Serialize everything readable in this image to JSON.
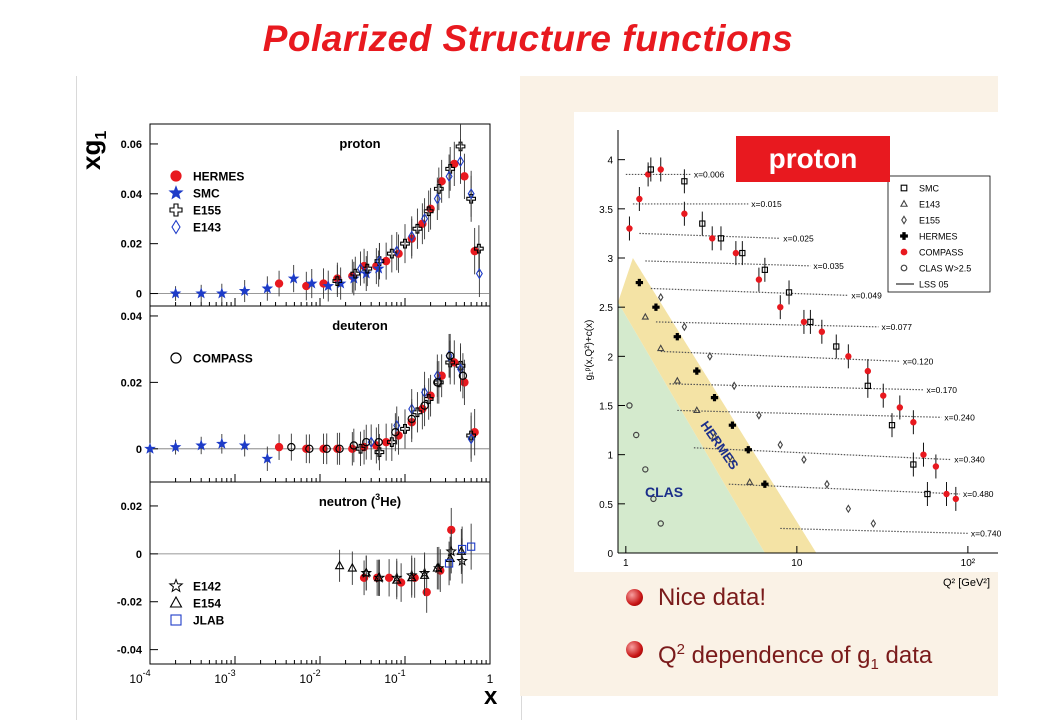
{
  "title": "Polarized Structure functions",
  "left_panel": {
    "ylabel": "xg",
    "ylabel_sub": "1",
    "xlabel": "x",
    "x_ticks": [
      {
        "base": "10",
        "exp": "-4"
      },
      {
        "base": "10",
        "exp": "-3"
      },
      {
        "base": "10",
        "exp": "-2"
      },
      {
        "base": "10",
        "exp": "-1"
      },
      {
        "base": "1",
        "exp": ""
      }
    ],
    "subplots": [
      {
        "label": "proton",
        "yticks": [
          "0.06",
          "0.04",
          "0.02",
          "0"
        ],
        "legend": [
          "HERMES",
          "SMC",
          "E155",
          "E143"
        ]
      },
      {
        "label": "deuteron",
        "yticks": [
          "0.04",
          "0.02",
          "0"
        ],
        "legend": [
          "COMPASS"
        ]
      },
      {
        "label": "neutron (",
        "label_sup": "3",
        "label_tail": "He)",
        "yticks": [
          "0.02",
          "0",
          "-0.02",
          "-0.04"
        ],
        "legend": [
          "E142",
          "E154",
          "JLAB"
        ]
      }
    ]
  },
  "right_panel": {
    "badge": "proton",
    "ylabel": "g₁ᵖ(x,Q²)+c(x)",
    "xlabel": "Q² [GeV²]",
    "yticks": [
      "4",
      "3.5",
      "3",
      "2.5",
      "2",
      "1.5",
      "1",
      "0.5",
      "0"
    ],
    "xticks": [
      "1",
      "10",
      "10²"
    ],
    "legend": [
      "SMC",
      "E143",
      "E155",
      "HERMES",
      "COMPASS",
      "CLAS W>2.5",
      "LSS 05"
    ],
    "region_labels": [
      "HERMES",
      "CLAS"
    ],
    "x_bins": [
      "x=0.006",
      "x=0.015",
      "x=0.025",
      "x=0.035",
      "x=0.049",
      "x=0.077",
      "x=0.120",
      "x=0.170",
      "x=0.240",
      "x=0.340",
      "x=0.480",
      "x=0.740"
    ]
  },
  "bullets": [
    {
      "text": "Nice data!"
    },
    {
      "pre": "Q",
      "sup": "2",
      "mid": " dependence of g",
      "sub": "1",
      "post": " data"
    }
  ],
  "chart_data": [
    {
      "type": "scatter",
      "title": "proton",
      "xlabel": "x",
      "ylabel": "xg1",
      "xscale": "log",
      "xlim": [
        0.0001,
        1
      ],
      "ylim": [
        -0.005,
        0.068
      ],
      "series": [
        {
          "name": "HERMES",
          "color": "#e8191f",
          "x": [
            0.0033,
            0.0069,
            0.011,
            0.016,
            0.024,
            0.033,
            0.046,
            0.06,
            0.084,
            0.12,
            0.16,
            0.2,
            0.27,
            0.38,
            0.5,
            0.66
          ],
          "y": [
            0.004,
            0.003,
            0.004,
            0.006,
            0.007,
            0.011,
            0.011,
            0.013,
            0.016,
            0.022,
            0.028,
            0.034,
            0.045,
            0.052,
            0.047,
            0.017
          ]
        },
        {
          "name": "SMC",
          "color": "#1e3cc8",
          "x": [
            0.0002,
            0.0004,
            0.0007,
            0.0013,
            0.0024,
            0.0049,
            0.008,
            0.0125,
            0.0175,
            0.025,
            0.035,
            0.049
          ],
          "y": [
            0.0,
            0.0,
            0.0,
            0.001,
            0.002,
            0.006,
            0.004,
            0.003,
            0.004,
            0.006,
            0.008,
            0.01
          ]
        },
        {
          "name": "E155",
          "color": "#000000",
          "x": [
            0.016,
            0.026,
            0.036,
            0.05,
            0.07,
            0.1,
            0.14,
            0.19,
            0.25,
            0.34,
            0.45,
            0.6,
            0.74
          ],
          "y": [
            0.005,
            0.008,
            0.01,
            0.013,
            0.016,
            0.02,
            0.026,
            0.033,
            0.042,
            0.05,
            0.059,
            0.038,
            0.018
          ]
        },
        {
          "name": "E143",
          "color": "#1e3cc8",
          "x": [
            0.03,
            0.05,
            0.08,
            0.12,
            0.17,
            0.24,
            0.33,
            0.45,
            0.6,
            0.75
          ],
          "y": [
            0.01,
            0.013,
            0.017,
            0.023,
            0.03,
            0.038,
            0.047,
            0.053,
            0.04,
            0.008
          ]
        }
      ]
    },
    {
      "type": "scatter",
      "title": "deuteron",
      "xlabel": "x",
      "ylabel": "xg1",
      "xscale": "log",
      "xlim": [
        0.0001,
        1
      ],
      "ylim": [
        -0.01,
        0.043
      ],
      "series": [
        {
          "name": "HERMES",
          "color": "#e8191f",
          "x": [
            0.0033,
            0.0069,
            0.011,
            0.016,
            0.024,
            0.033,
            0.046,
            0.06,
            0.084,
            0.12,
            0.16,
            0.2,
            0.27,
            0.38,
            0.5,
            0.66
          ],
          "y": [
            0.0005,
            0.0,
            0.0,
            0.0,
            0.0,
            0.0005,
            0.001,
            0.002,
            0.004,
            0.008,
            0.012,
            0.016,
            0.022,
            0.026,
            0.02,
            0.005
          ]
        },
        {
          "name": "SMC",
          "color": "#1e3cc8",
          "x": [
            0.0001,
            0.0002,
            0.0004,
            0.0007,
            0.0013,
            0.0024
          ],
          "y": [
            0.0,
            0.0005,
            0.001,
            0.0015,
            0.001,
            -0.003
          ]
        },
        {
          "name": "E155",
          "color": "#000000",
          "x": [
            0.03,
            0.05,
            0.07,
            0.1,
            0.14,
            0.19,
            0.25,
            0.34,
            0.45,
            0.6
          ],
          "y": [
            0.0,
            -0.001,
            0.002,
            0.006,
            0.011,
            0.015,
            0.02,
            0.026,
            0.025,
            0.004
          ]
        },
        {
          "name": "E143",
          "color": "#1e3cc8",
          "x": [
            0.04,
            0.08,
            0.12,
            0.17,
            0.24,
            0.33,
            0.45,
            0.6
          ],
          "y": [
            0.002,
            0.007,
            0.012,
            0.017,
            0.022,
            0.028,
            0.024,
            0.003
          ]
        },
        {
          "name": "COMPASS",
          "color": "#000000",
          "x": [
            0.0046,
            0.0075,
            0.012,
            0.017,
            0.025,
            0.035,
            0.049,
            0.077,
            0.12,
            0.17,
            0.24,
            0.34,
            0.48
          ],
          "y": [
            0.0005,
            0.0,
            0.0,
            0.0,
            0.001,
            0.002,
            0.002,
            0.005,
            0.009,
            0.013,
            0.02,
            0.028,
            0.022
          ]
        }
      ]
    },
    {
      "type": "scatter",
      "title": "neutron (3He)",
      "xlabel": "x",
      "ylabel": "xg1",
      "xscale": "log",
      "xlim": [
        0.0001,
        1
      ],
      "ylim": [
        -0.046,
        0.03
      ],
      "series": [
        {
          "name": "HERMES",
          "color": "#e8191f",
          "x": [
            0.033,
            0.047,
            0.065,
            0.09,
            0.13,
            0.18,
            0.26,
            0.35
          ],
          "y": [
            -0.01,
            -0.01,
            -0.01,
            -0.012,
            -0.01,
            -0.016,
            -0.007,
            0.01
          ]
        },
        {
          "name": "E142",
          "color": "#000000",
          "x": [
            0.035,
            0.05,
            0.08,
            0.12,
            0.17,
            0.25,
            0.35,
            0.47
          ],
          "y": [
            -0.008,
            -0.01,
            -0.01,
            -0.009,
            -0.008,
            -0.006,
            0.001,
            -0.003
          ]
        },
        {
          "name": "E154",
          "color": "#000000",
          "x": [
            0.017,
            0.024,
            0.035,
            0.049,
            0.08,
            0.12,
            0.17,
            0.24,
            0.34,
            0.46
          ],
          "y": [
            -0.005,
            -0.006,
            -0.008,
            -0.01,
            -0.011,
            -0.01,
            -0.009,
            -0.006,
            -0.002,
            0.001
          ]
        },
        {
          "name": "JLAB",
          "color": "#1e3cc8",
          "x": [
            0.33,
            0.47,
            0.6
          ],
          "y": [
            -0.004,
            0.002,
            0.003
          ]
        }
      ]
    },
    {
      "type": "line",
      "title": "proton",
      "xlabel": "Q² [GeV²]",
      "ylabel": "g₁ᵖ(x,Q²)+c(x)",
      "xscale": "log",
      "xlim": [
        0.9,
        150
      ],
      "ylim": [
        0,
        4.2
      ],
      "series": [
        {
          "name": "LSS 05",
          "color": "#000000",
          "bins": [
            {
              "label": "x=0.006",
              "x": [
                1.0,
                2.4
              ],
              "y": [
                3.85,
                3.85
              ]
            },
            {
              "label": "x=0.015",
              "x": [
                1.1,
                5.2
              ],
              "y": [
                3.55,
                3.55
              ]
            },
            {
              "label": "x=0.025",
              "x": [
                1.2,
                8
              ],
              "y": [
                3.25,
                3.2
              ]
            },
            {
              "label": "x=0.035",
              "x": [
                1.3,
                12
              ],
              "y": [
                2.97,
                2.92
              ]
            },
            {
              "label": "x=0.049",
              "x": [
                1.4,
                20
              ],
              "y": [
                2.69,
                2.62
              ]
            },
            {
              "label": "x=0.077",
              "x": [
                1.5,
                30
              ],
              "y": [
                2.35,
                2.3
              ]
            },
            {
              "label": "x=0.120",
              "x": [
                1.6,
                40
              ],
              "y": [
                2.05,
                1.95
              ]
            },
            {
              "label": "x=0.170",
              "x": [
                1.8,
                55
              ],
              "y": [
                1.72,
                1.66
              ]
            },
            {
              "label": "x=0.240",
              "x": [
                2.0,
                70
              ],
              "y": [
                1.45,
                1.38
              ]
            },
            {
              "label": "x=0.340",
              "x": [
                2.5,
                80
              ],
              "y": [
                1.07,
                0.95
              ]
            },
            {
              "label": "x=0.480",
              "x": [
                4,
                90
              ],
              "y": [
                0.7,
                0.6
              ]
            },
            {
              "label": "x=0.740",
              "x": [
                8,
                100
              ],
              "y": [
                0.25,
                0.2
              ]
            }
          ]
        },
        {
          "name": "COMPASS",
          "color": "#e8191f",
          "x": [
            1.05,
            1.2,
            1.35,
            1.6,
            2.2,
            3.2,
            4.4,
            6.0,
            8.0,
            11,
            14,
            20,
            26,
            32,
            40,
            48,
            55,
            65,
            75,
            85
          ],
          "y": [
            3.3,
            3.6,
            3.85,
            3.9,
            3.45,
            3.2,
            3.05,
            2.78,
            2.5,
            2.35,
            2.25,
            2.0,
            1.85,
            1.6,
            1.48,
            1.33,
            1.0,
            0.88,
            0.6,
            0.55
          ]
        },
        {
          "name": "HERMES",
          "color": "#000000",
          "x": [
            1.2,
            1.5,
            2.0,
            2.6,
            3.3,
            4.2,
            5.2,
            6.5
          ],
          "y": [
            2.75,
            2.5,
            2.2,
            1.85,
            1.58,
            1.3,
            1.05,
            0.7
          ]
        },
        {
          "name": "SMC",
          "color": "#000000",
          "x": [
            1.4,
            2.2,
            2.8,
            3.6,
            4.8,
            6.5,
            9,
            12,
            17,
            26,
            36,
            48,
            58
          ],
          "y": [
            3.9,
            3.78,
            3.35,
            3.2,
            3.05,
            2.88,
            2.65,
            2.35,
            2.1,
            1.7,
            1.3,
            0.9,
            0.6
          ]
        },
        {
          "name": "E143",
          "color": "#000000",
          "x": [
            1.3,
            1.6,
            2.0,
            2.6,
            3.3,
            4.2,
            5.3
          ],
          "y": [
            2.4,
            2.08,
            1.75,
            1.45,
            1.18,
            0.95,
            0.72
          ]
        },
        {
          "name": "E155",
          "color": "#000000",
          "x": [
            1.6,
            2.2,
            3.1,
            4.3,
            6,
            8,
            11,
            15,
            20,
            28
          ],
          "y": [
            2.6,
            2.3,
            2.0,
            1.7,
            1.4,
            1.1,
            0.95,
            0.7,
            0.45,
            0.3
          ]
        },
        {
          "name": "CLAS W>2.5",
          "color": "#000000",
          "x": [
            1.05,
            1.15,
            1.3,
            1.45,
            1.6
          ],
          "y": [
            1.5,
            1.2,
            0.85,
            0.55,
            0.3
          ]
        }
      ]
    }
  ]
}
